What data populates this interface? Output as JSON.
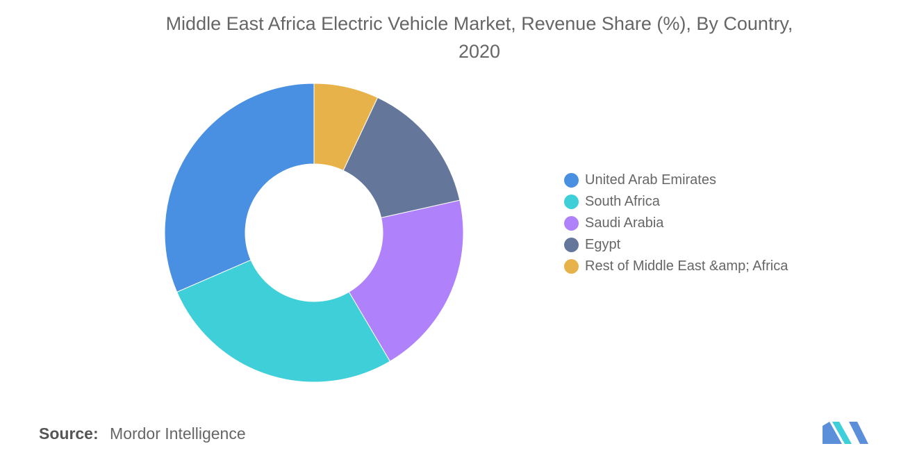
{
  "chart_data": {
    "type": "pie",
    "variant": "donut",
    "title": "Middle East Africa Electric Vehicle Market, Revenue Share (%), By Country,",
    "title_line2": "2020",
    "labels": [
      "United Arab Emirates",
      "South Africa",
      "Saudi Arabia",
      "Egypt",
      "Rest of Middle East &amp; Africa"
    ],
    "values": [
      31.5,
      27.0,
      20.0,
      14.5,
      7.0
    ],
    "colors": [
      "#4a90e2",
      "#3ecfd8",
      "#af81fb",
      "#64779a",
      "#e8b24a"
    ],
    "legend_position": "right",
    "start_angle_deg": -90,
    "direction": "counterclockwise"
  },
  "footer": {
    "source_label": "Source:",
    "source_value": "Mordor Intelligence"
  },
  "logo": {
    "icon": "mordor-intelligence-logo-icon",
    "colors": [
      "#5b8fd9",
      "#3ecfd8"
    ]
  }
}
